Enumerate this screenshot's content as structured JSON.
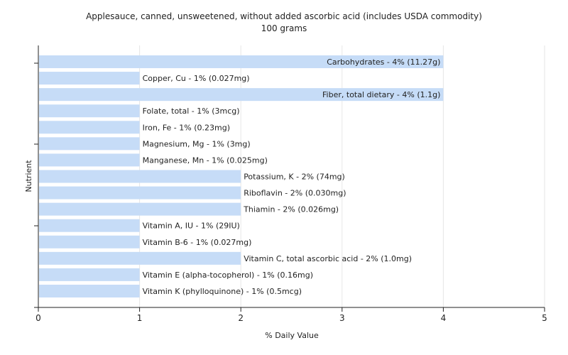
{
  "chart_data": {
    "type": "bar",
    "orientation": "horizontal",
    "title": "Applesauce, canned, unsweetened, without added ascorbic acid (includes USDA commodity)",
    "subtitle": "100 grams",
    "xlabel": "% Daily Value",
    "ylabel": "Nutrient",
    "xlim": [
      0,
      5
    ],
    "xticks": [
      "0",
      "1",
      "2",
      "3",
      "4",
      "5"
    ],
    "grid": true,
    "bar_color": "#c6dcf7",
    "categories": [
      "Carbohydrates",
      "Copper, Cu",
      "Fiber, total dietary",
      "Folate, total",
      "Iron, Fe",
      "Magnesium, Mg",
      "Manganese, Mn",
      "Potassium, K",
      "Riboflavin",
      "Thiamin",
      "Vitamin A, IU",
      "Vitamin B-6",
      "Vitamin C, total ascorbic acid",
      "Vitamin E (alpha-tocopherol)",
      "Vitamin K (phylloquinone)"
    ],
    "values": [
      4,
      1,
      4,
      1,
      1,
      1,
      1,
      2,
      2,
      2,
      1,
      1,
      2,
      1,
      1
    ],
    "bar_labels": [
      "Carbohydrates - 4% (11.27g)",
      "Copper, Cu - 1% (0.027mg)",
      "Fiber, total dietary - 4% (1.1g)",
      "Folate, total - 1% (3mcg)",
      "Iron, Fe - 1% (0.23mg)",
      "Magnesium, Mg - 1% (3mg)",
      "Manganese, Mn - 1% (0.025mg)",
      "Potassium, K - 2% (74mg)",
      "Riboflavin - 2% (0.030mg)",
      "Thiamin - 2% (0.026mg)",
      "Vitamin A, IU - 1% (29IU)",
      "Vitamin B-6 - 1% (0.027mg)",
      "Vitamin C, total ascorbic acid - 2% (1.0mg)",
      "Vitamin E (alpha-tocopherol) - 1% (0.16mg)",
      "Vitamin K (phylloquinone) - 1% (0.5mcg)"
    ]
  }
}
